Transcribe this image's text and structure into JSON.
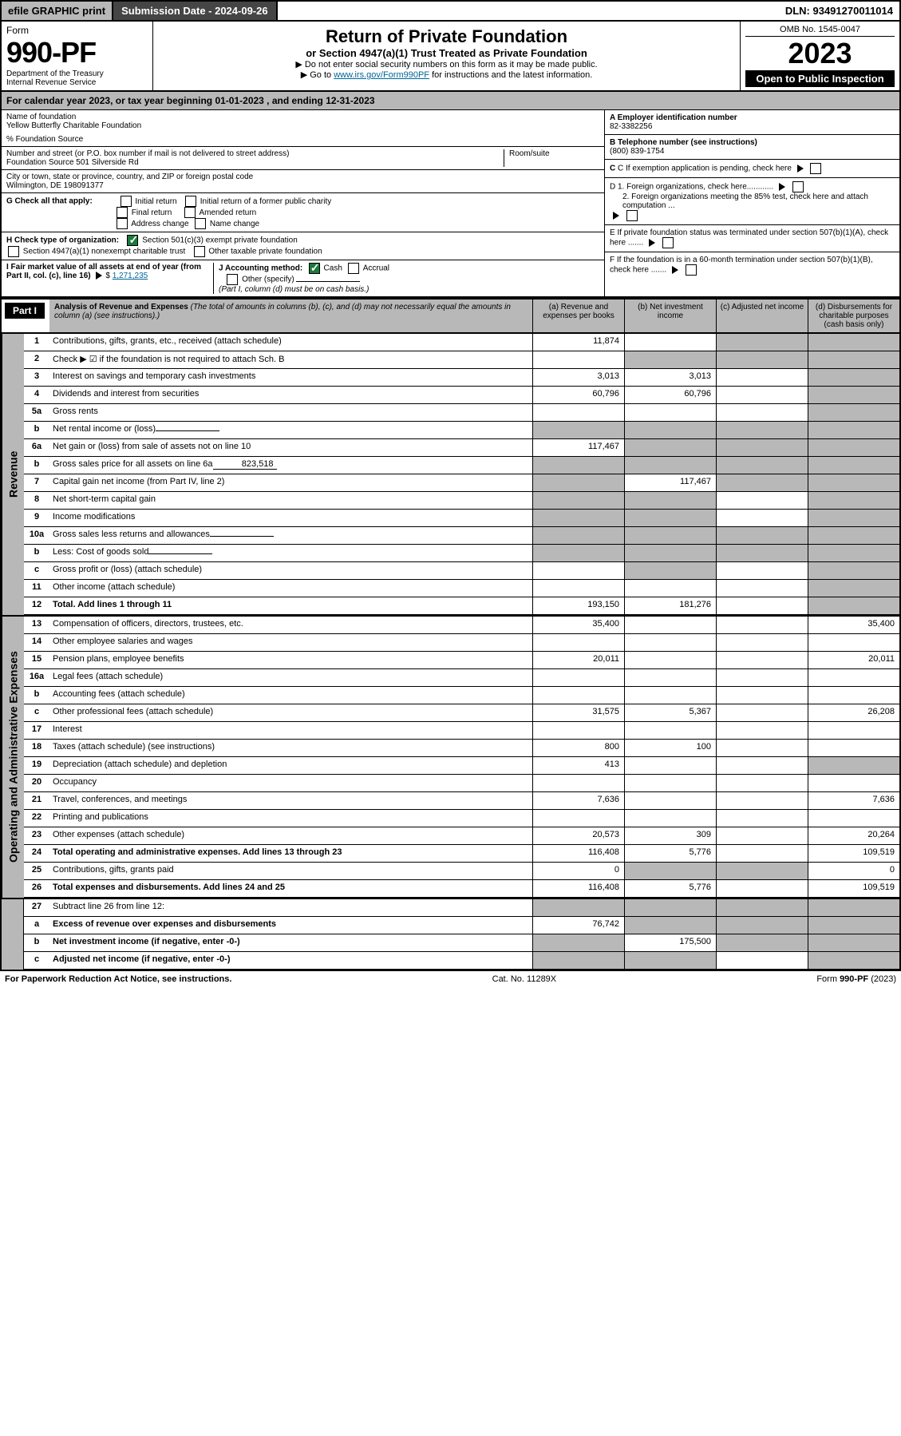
{
  "topbar": {
    "efile": "efile GRAPHIC print",
    "submission_label": "Submission Date - 2024-09-26",
    "dln": "DLN: 93491270011014"
  },
  "header": {
    "form": "Form",
    "form_no": "990-PF",
    "dept1": "Department of the Treasury",
    "dept2": "Internal Revenue Service",
    "title": "Return of Private Foundation",
    "subtitle": "or Section 4947(a)(1) Trust Treated as Private Foundation",
    "note1": "▶ Do not enter social security numbers on this form as it may be made public.",
    "note2_pre": "▶ Go to ",
    "note2_link": "www.irs.gov/Form990PF",
    "note2_post": " for instructions and the latest information.",
    "omb": "OMB No. 1545-0047",
    "year": "2023",
    "open": "Open to Public Inspection"
  },
  "calendar": {
    "pre": "For calendar year 2023, or tax year beginning ",
    "begin": "01-01-2023",
    "mid": " , and ending ",
    "end": "12-31-2023"
  },
  "info": {
    "name_label": "Name of foundation",
    "name": "Yellow Butterfly Charitable Foundation",
    "care_of": "% Foundation Source",
    "addr_label": "Number and street (or P.O. box number if mail is not delivered to street address)",
    "addr": "Foundation Source 501 Silverside Rd",
    "room_label": "Room/suite",
    "city_label": "City or town, state or province, country, and ZIP or foreign postal code",
    "city": "Wilmington, DE  198091377",
    "a_label": "A Employer identification number",
    "a_val": "82-3382256",
    "b_label": "B Telephone number (see instructions)",
    "b_val": "(800) 839-1754",
    "c_label": "C If exemption application is pending, check here",
    "d1_label": "D 1. Foreign organizations, check here............",
    "d2_label": "2. Foreign organizations meeting the 85% test, check here and attach computation ...",
    "e_label": "E If private foundation status was terminated under section 507(b)(1)(A), check here .......",
    "f_label": "F If the foundation is in a 60-month termination under section 507(b)(1)(B), check here .......",
    "g_label": "G Check all that apply:",
    "g_opts": [
      "Initial return",
      "Final return",
      "Address change",
      "Initial return of a former public charity",
      "Amended return",
      "Name change"
    ],
    "h_label": "H Check type of organization:",
    "h_opt1": "Section 501(c)(3) exempt private foundation",
    "h_opt2": "Section 4947(a)(1) nonexempt charitable trust",
    "h_opt3": "Other taxable private foundation",
    "i_label": "I Fair market value of all assets at end of year (from Part II, col. (c), line 16)",
    "i_val": "1,271,235",
    "j_label": "J Accounting method:",
    "j_cash": "Cash",
    "j_accrual": "Accrual",
    "j_other": "Other (specify)",
    "j_note": "(Part I, column (d) must be on cash basis.)"
  },
  "part1": {
    "label": "Part I",
    "title": "Analysis of Revenue and Expenses",
    "title_note": " (The total of amounts in columns (b), (c), and (d) may not necessarily equal the amounts in column (a) (see instructions).)",
    "cols": {
      "a": "(a) Revenue and expenses per books",
      "b": "(b) Net investment income",
      "c": "(c) Adjusted net income",
      "d": "(d) Disbursements for charitable purposes (cash basis only)"
    }
  },
  "side_labels": {
    "revenue": "Revenue",
    "expenses": "Operating and Administrative Expenses"
  },
  "rows": [
    {
      "n": "1",
      "d": "Contributions, gifts, grants, etc., received (attach schedule)",
      "a": "11,874",
      "b": "",
      "c": "g",
      "dcol": "g"
    },
    {
      "n": "2",
      "d": "Check ▶ ☑ if the foundation is not required to attach Sch. B",
      "dots": true,
      "a": "",
      "b": "g",
      "c": "g",
      "dcol": "g"
    },
    {
      "n": "3",
      "d": "Interest on savings and temporary cash investments",
      "a": "3,013",
      "b": "3,013",
      "c": "",
      "dcol": "g"
    },
    {
      "n": "4",
      "d": "Dividends and interest from securities",
      "dots": true,
      "a": "60,796",
      "b": "60,796",
      "c": "",
      "dcol": "g"
    },
    {
      "n": "5a",
      "d": "Gross rents",
      "dots": true,
      "a": "",
      "b": "",
      "c": "",
      "dcol": "g"
    },
    {
      "n": "b",
      "d": "Net rental income or (loss)",
      "inline": "",
      "a": "g",
      "b": "g",
      "c": "g",
      "dcol": "g"
    },
    {
      "n": "6a",
      "d": "Net gain or (loss) from sale of assets not on line 10",
      "a": "117,467",
      "b": "g",
      "c": "g",
      "dcol": "g"
    },
    {
      "n": "b",
      "d": "Gross sales price for all assets on line 6a",
      "inline": "823,518",
      "a": "g",
      "b": "g",
      "c": "g",
      "dcol": "g"
    },
    {
      "n": "7",
      "d": "Capital gain net income (from Part IV, line 2)",
      "dots": true,
      "a": "g",
      "b": "117,467",
      "c": "g",
      "dcol": "g"
    },
    {
      "n": "8",
      "d": "Net short-term capital gain",
      "dots": true,
      "a": "g",
      "b": "g",
      "c": "",
      "dcol": "g"
    },
    {
      "n": "9",
      "d": "Income modifications",
      "dots": true,
      "a": "g",
      "b": "g",
      "c": "",
      "dcol": "g"
    },
    {
      "n": "10a",
      "d": "Gross sales less returns and allowances",
      "inline": "",
      "a": "g",
      "b": "g",
      "c": "g",
      "dcol": "g"
    },
    {
      "n": "b",
      "d": "Less: Cost of goods sold",
      "dots": true,
      "inline": "",
      "a": "g",
      "b": "g",
      "c": "g",
      "dcol": "g"
    },
    {
      "n": "c",
      "d": "Gross profit or (loss) (attach schedule)",
      "dots": true,
      "a": "",
      "b": "g",
      "c": "",
      "dcol": "g"
    },
    {
      "n": "11",
      "d": "Other income (attach schedule)",
      "dots": true,
      "a": "",
      "b": "",
      "c": "",
      "dcol": "g"
    },
    {
      "n": "12",
      "d": "Total. Add lines 1 through 11",
      "dots": true,
      "bold": true,
      "a": "193,150",
      "b": "181,276",
      "c": "",
      "dcol": "g"
    },
    {
      "n": "13",
      "d": "Compensation of officers, directors, trustees, etc.",
      "a": "35,400",
      "b": "",
      "c": "",
      "dcol": "35,400",
      "sec": "exp"
    },
    {
      "n": "14",
      "d": "Other employee salaries and wages",
      "dots": true,
      "a": "",
      "b": "",
      "c": "",
      "dcol": ""
    },
    {
      "n": "15",
      "d": "Pension plans, employee benefits",
      "dots": true,
      "a": "20,011",
      "b": "",
      "c": "",
      "dcol": "20,011"
    },
    {
      "n": "16a",
      "d": "Legal fees (attach schedule)",
      "dots": true,
      "a": "",
      "b": "",
      "c": "",
      "dcol": ""
    },
    {
      "n": "b",
      "d": "Accounting fees (attach schedule)",
      "dots": true,
      "a": "",
      "b": "",
      "c": "",
      "dcol": ""
    },
    {
      "n": "c",
      "d": "Other professional fees (attach schedule)",
      "dots": true,
      "a": "31,575",
      "b": "5,367",
      "c": "",
      "dcol": "26,208"
    },
    {
      "n": "17",
      "d": "Interest",
      "dots": true,
      "a": "",
      "b": "",
      "c": "",
      "dcol": ""
    },
    {
      "n": "18",
      "d": "Taxes (attach schedule) (see instructions)",
      "dots": true,
      "a": "800",
      "b": "100",
      "c": "",
      "dcol": ""
    },
    {
      "n": "19",
      "d": "Depreciation (attach schedule) and depletion",
      "dots": true,
      "a": "413",
      "b": "",
      "c": "",
      "dcol": "g"
    },
    {
      "n": "20",
      "d": "Occupancy",
      "dots": true,
      "a": "",
      "b": "",
      "c": "",
      "dcol": ""
    },
    {
      "n": "21",
      "d": "Travel, conferences, and meetings",
      "dots": true,
      "a": "7,636",
      "b": "",
      "c": "",
      "dcol": "7,636"
    },
    {
      "n": "22",
      "d": "Printing and publications",
      "dots": true,
      "a": "",
      "b": "",
      "c": "",
      "dcol": ""
    },
    {
      "n": "23",
      "d": "Other expenses (attach schedule)",
      "dots": true,
      "a": "20,573",
      "b": "309",
      "c": "",
      "dcol": "20,264"
    },
    {
      "n": "24",
      "d": "Total operating and administrative expenses. Add lines 13 through 23",
      "dots": true,
      "bold": true,
      "a": "116,408",
      "b": "5,776",
      "c": "",
      "dcol": "109,519"
    },
    {
      "n": "25",
      "d": "Contributions, gifts, grants paid",
      "dots": true,
      "a": "0",
      "b": "g",
      "c": "g",
      "dcol": "0"
    },
    {
      "n": "26",
      "d": "Total expenses and disbursements. Add lines 24 and 25",
      "bold": true,
      "a": "116,408",
      "b": "5,776",
      "c": "",
      "dcol": "109,519"
    },
    {
      "n": "27",
      "d": "Subtract line 26 from line 12:",
      "a": "g",
      "b": "g",
      "c": "g",
      "dcol": "g",
      "sec": "final"
    },
    {
      "n": "a",
      "d": "Excess of revenue over expenses and disbursements",
      "bold": true,
      "a": "76,742",
      "b": "g",
      "c": "g",
      "dcol": "g"
    },
    {
      "n": "b",
      "d": "Net investment income (if negative, enter -0-)",
      "bold": true,
      "a": "g",
      "b": "175,500",
      "c": "g",
      "dcol": "g"
    },
    {
      "n": "c",
      "d": "Adjusted net income (if negative, enter -0-)",
      "dots": true,
      "bold": true,
      "a": "g",
      "b": "g",
      "c": "",
      "dcol": "g"
    }
  ],
  "footer": {
    "left": "For Paperwork Reduction Act Notice, see instructions.",
    "mid": "Cat. No. 11289X",
    "right": "Form 990-PF (2023)"
  }
}
